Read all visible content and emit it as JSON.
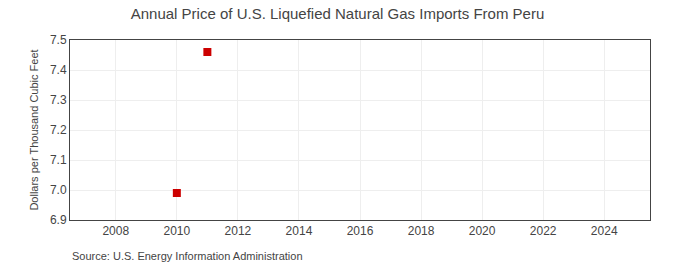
{
  "chart_data": {
    "type": "scatter",
    "title": "Annual Price of U.S. Liquefied Natural Gas Imports From Peru",
    "ylabel": "Dollars per Thousand Cubic Feet",
    "annotations": [
      "Source: U.S. Energy Information Administration"
    ],
    "x": [
      2010,
      2011
    ],
    "values": [
      6.99,
      7.46
    ],
    "color": "#cc0000",
    "marker": "square",
    "xlim": [
      2006.5,
      2025.5
    ],
    "xticks": [
      2008,
      2010,
      2012,
      2014,
      2016,
      2018,
      2020,
      2022,
      2024
    ],
    "ylim": [
      6.9,
      7.5
    ],
    "yticks": [
      6.9,
      {
        "value": 7.0,
        "label": "7.0"
      },
      7.1,
      7.2,
      7.3,
      7.4,
      7.5
    ],
    "grid": true
  }
}
